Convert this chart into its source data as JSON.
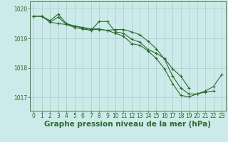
{
  "background_color": "#cceaea",
  "line_color": "#2d6a2d",
  "grid_color": "#aacccc",
  "ylim": [
    1016.55,
    1020.25
  ],
  "xlim": [
    -0.5,
    23.5
  ],
  "yticks": [
    1017,
    1018,
    1019,
    1020
  ],
  "xticks": [
    0,
    1,
    2,
    3,
    4,
    5,
    6,
    7,
    8,
    9,
    10,
    11,
    12,
    13,
    14,
    15,
    16,
    17,
    18,
    19,
    20,
    21,
    22,
    23
  ],
  "xlabel": "Graphe pression niveau de la mer (hPa)",
  "line1": [
    1019.75,
    1019.75,
    1019.6,
    1019.82,
    1019.5,
    1019.42,
    1019.35,
    1019.3,
    1019.3,
    1019.27,
    1019.3,
    1019.3,
    1019.22,
    1019.12,
    1018.9,
    1018.65,
    1018.3,
    1017.72,
    1017.32,
    1017.12,
    1017.12,
    1017.18,
    1017.22,
    null
  ],
  "line2": [
    1019.75,
    1019.75,
    1019.55,
    1019.5,
    1019.47,
    1019.37,
    1019.32,
    1019.27,
    1019.57,
    1019.57,
    1019.22,
    1019.17,
    1018.97,
    1018.87,
    1018.62,
    1018.5,
    1018.32,
    1017.97,
    1017.72,
    1017.32,
    null,
    null,
    null,
    null
  ],
  "line3": [
    1019.75,
    1019.75,
    1019.55,
    1019.72,
    1019.47,
    1019.42,
    1019.37,
    1019.32,
    1019.32,
    1019.27,
    1019.17,
    1019.07,
    1018.82,
    1018.77,
    1018.57,
    1018.32,
    1017.97,
    1017.47,
    1017.07,
    1017.02,
    1017.12,
    1017.22,
    1017.37,
    1017.77
  ],
  "title_fontsize": 7.0,
  "tick_fontsize": 5.5,
  "xlabel_fontsize": 7.5
}
